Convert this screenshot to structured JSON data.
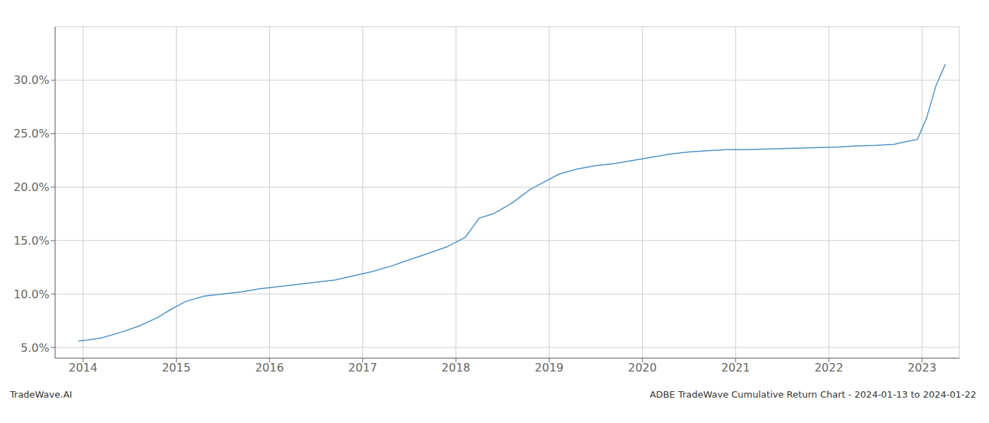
{
  "chart_data": {
    "type": "line",
    "annotations": [
      "TradeWave.AI",
      "ADBE TradeWave Cumulative Return Chart - 2024-01-13 to 2024-01-22"
    ],
    "x": [
      2013.95,
      2014.05,
      2014.2,
      2014.4,
      2014.6,
      2014.8,
      2014.95,
      2015.1,
      2015.3,
      2015.5,
      2015.7,
      2015.9,
      2016.1,
      2016.3,
      2016.5,
      2016.7,
      2016.9,
      2017.1,
      2017.3,
      2017.5,
      2017.7,
      2017.9,
      2018.1,
      2018.25,
      2018.4,
      2018.6,
      2018.8,
      2018.95,
      2019.1,
      2019.3,
      2019.5,
      2019.7,
      2019.9,
      2020.1,
      2020.3,
      2020.5,
      2020.7,
      2020.9,
      2021.1,
      2021.3,
      2021.5,
      2021.7,
      2021.9,
      2022.1,
      2022.3,
      2022.5,
      2022.7,
      2022.85,
      2022.95,
      2023.05,
      2023.15,
      2023.25
    ],
    "values": [
      5.6,
      5.7,
      5.9,
      6.4,
      7.0,
      7.8,
      8.6,
      9.3,
      9.8,
      10.0,
      10.2,
      10.5,
      10.7,
      10.9,
      11.1,
      11.3,
      11.7,
      12.1,
      12.6,
      13.2,
      13.8,
      14.4,
      15.3,
      17.1,
      17.5,
      18.5,
      19.8,
      20.5,
      21.2,
      21.7,
      22.0,
      22.2,
      22.5,
      22.8,
      23.1,
      23.3,
      23.4,
      23.5,
      23.5,
      23.55,
      23.6,
      23.65,
      23.7,
      23.75,
      23.85,
      23.9,
      24.0,
      24.3,
      24.45,
      26.5,
      29.5,
      31.5
    ],
    "color": "#4a90c4",
    "xlim": [
      2013.7,
      2023.4
    ],
    "ylim": [
      4.0,
      35.0
    ],
    "xticks": [
      2014,
      2015,
      2016,
      2017,
      2018,
      2019,
      2020,
      2021,
      2022,
      2023
    ],
    "yticks": [
      {
        "value": 5.0,
        "label": "5.0%"
      },
      {
        "value": 10.0,
        "label": "10.0%"
      },
      {
        "value": 15.0,
        "label": "15.0%"
      },
      {
        "value": 20.0,
        "label": "20.0%"
      },
      {
        "value": 25.0,
        "label": "25.0%"
      },
      {
        "value": 30.0,
        "label": "30.0%"
      }
    ],
    "grid": true
  }
}
